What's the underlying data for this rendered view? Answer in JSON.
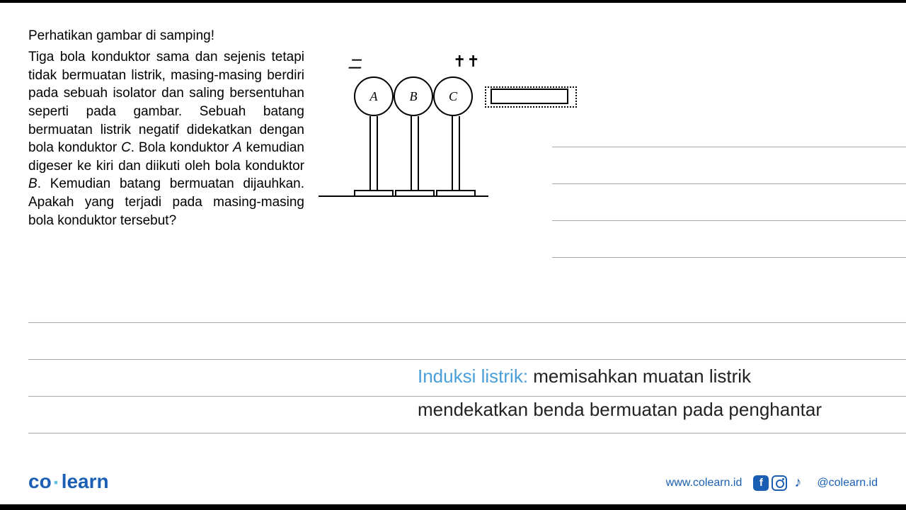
{
  "heading": "Perhatikan gambar di samping!",
  "paragraph_segments": [
    {
      "t": "Tiga bola konduktor sama dan sejenis tetapi tidak bermuatan listrik, masing-masing berdiri pada sebuah isolator dan saling bersentuhan seperti pada gambar. Sebuah batang bermuatan listrik negatif didekatkan dengan bola konduktor ",
      "i": false
    },
    {
      "t": "C",
      "i": true
    },
    {
      "t": ". Bola konduktor ",
      "i": false
    },
    {
      "t": "A",
      "i": true
    },
    {
      "t": " kemudian digeser ke kiri dan diikuti oleh bola konduktor ",
      "i": false
    },
    {
      "t": "B",
      "i": true
    },
    {
      "t": ". Kemudian batang bermuatan dijauhkan. Apakah yang terjadi pada masing-masing bola konduktor tersebut?",
      "i": false
    }
  ],
  "diagram": {
    "labels": {
      "a": "A",
      "b": "B",
      "c": "C"
    },
    "mark_neg": "ニ",
    "mark_pos": "✝✝"
  },
  "notes": {
    "label": "Induksi listrik:",
    "line1_rest": " memisahkan muatan listrik",
    "line2": "mendekatkan benda bermuatan pada penghantar"
  },
  "footer": {
    "logo_a": "co",
    "logo_b": "learn",
    "url": "www.colearn.id",
    "handle": "@colearn.id"
  },
  "colors": {
    "brand_primary": "#1a5fb4",
    "brand_light": "#4a9fd8",
    "rule": "#a8a8a8"
  }
}
